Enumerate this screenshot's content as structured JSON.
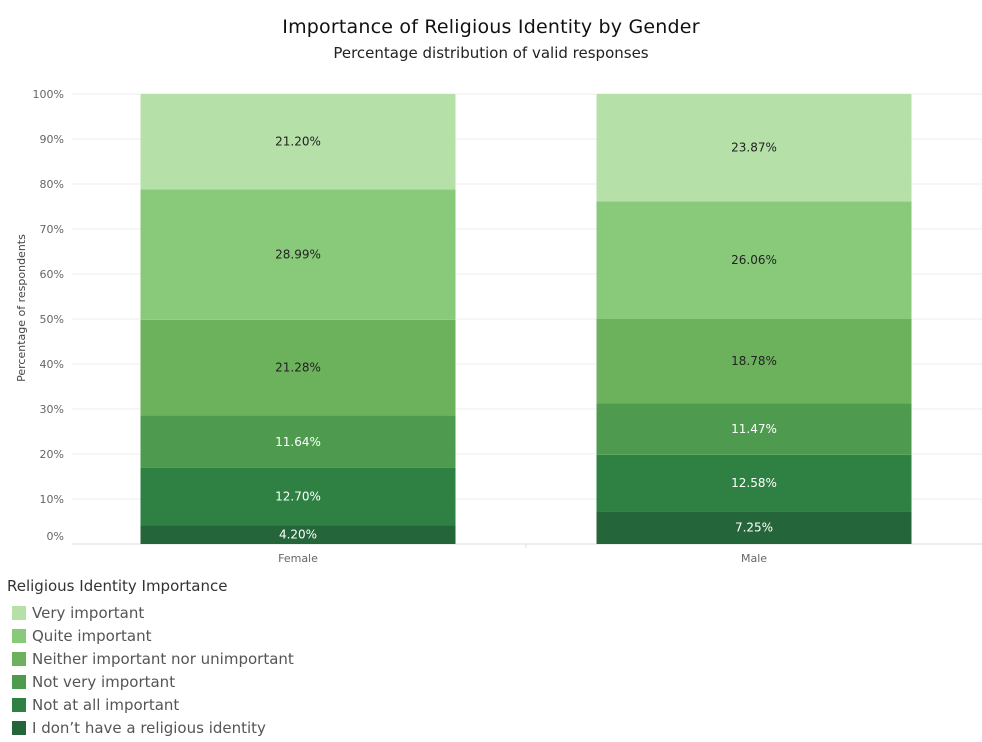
{
  "chart_data": {
    "type": "bar",
    "stacked": true,
    "title": "Importance of Religious Identity by Gender",
    "subtitle": "Percentage distribution of valid responses",
    "xlabel": "",
    "ylabel": "Percentage of respondents",
    "ylim": [
      0,
      100
    ],
    "yticks": [
      "0%",
      "10%",
      "20%",
      "30%",
      "40%",
      "50%",
      "60%",
      "70%",
      "80%",
      "90%",
      "100%"
    ],
    "grid": true,
    "legend_position": "bottom-left",
    "legend_title": "Religious Identity Importance",
    "categories": [
      "Female",
      "Male"
    ],
    "series": [
      {
        "name": "I don't have a religious identity",
        "values": [
          4.2,
          7.25
        ],
        "labels": [
          "4.20%",
          "7.25%"
        ],
        "color": "#24663a",
        "label_color": "#ffffff"
      },
      {
        "name": "Not at all important",
        "values": [
          12.7,
          12.58
        ],
        "labels": [
          "12.70%",
          "12.58%"
        ],
        "color": "#2e8043",
        "label_color": "#ffffff"
      },
      {
        "name": "Not very important",
        "values": [
          11.64,
          11.47
        ],
        "labels": [
          "11.64%",
          "11.47%"
        ],
        "color": "#4e9a4f",
        "label_color": "#ffffff"
      },
      {
        "name": "Neither important nor unimportant",
        "values": [
          21.28,
          18.78
        ],
        "labels": [
          "21.28%",
          "18.78%"
        ],
        "color": "#6cb25d",
        "label_color": "#222222"
      },
      {
        "name": "Quite important",
        "values": [
          28.99,
          26.06
        ],
        "labels": [
          "28.99%",
          "26.06%"
        ],
        "color": "#89ca7a",
        "label_color": "#222222"
      },
      {
        "name": "Very important",
        "values": [
          21.2,
          23.87
        ],
        "labels": [
          "21.20%",
          "23.87%"
        ],
        "color": "#b5e0a8",
        "label_color": "#222222"
      }
    ],
    "legend_order": [
      "Very important",
      "Quite important",
      "Neither important nor unimportant",
      "Not very important",
      "Not at all important",
      "I don’t have a religious identity"
    ]
  }
}
